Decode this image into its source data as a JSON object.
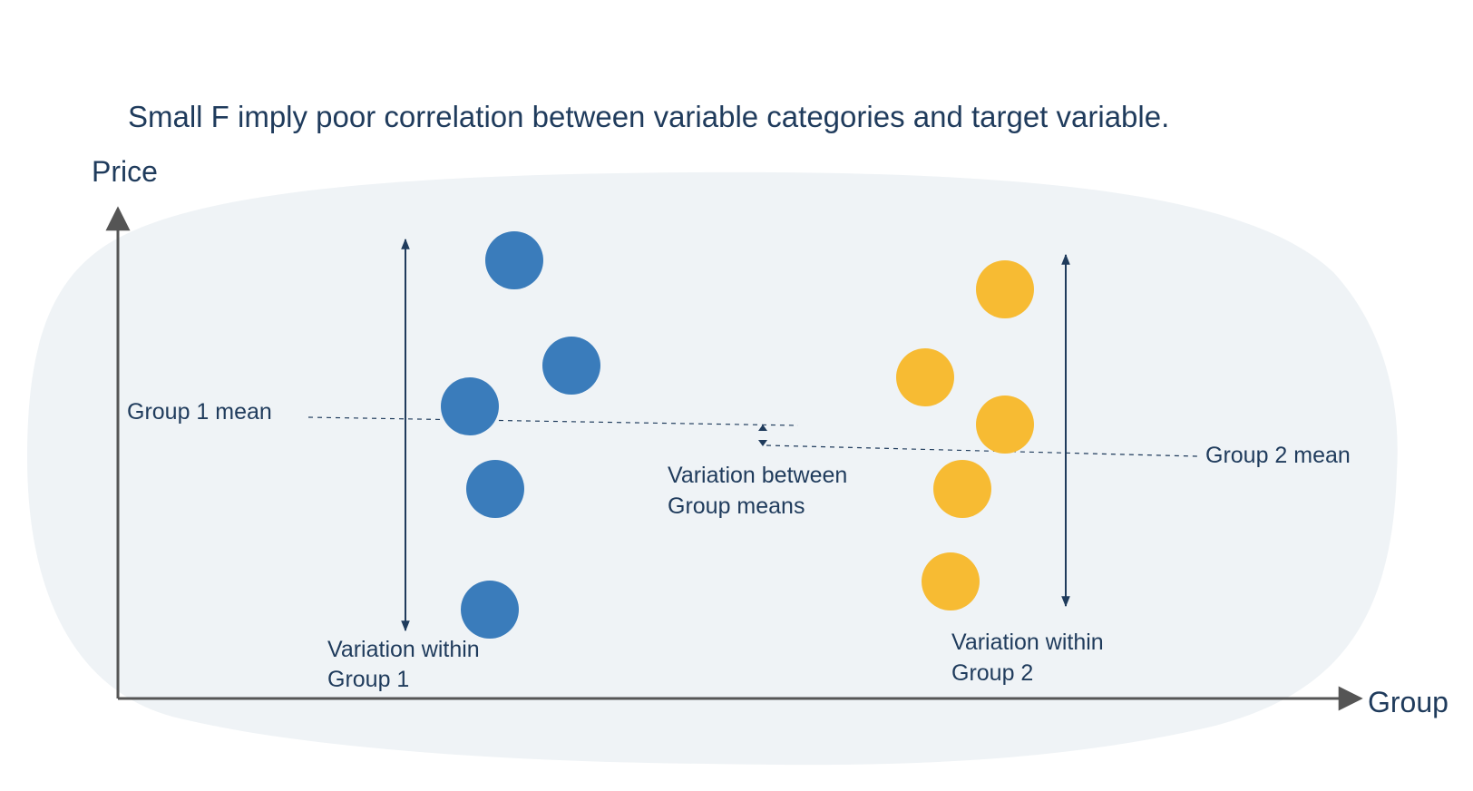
{
  "title": "Small F imply poor correlation between variable categories and target variable.",
  "axes": {
    "y_label": "Price",
    "x_label": "Group"
  },
  "labels": {
    "group1_mean": "Group 1 mean",
    "group2_mean": "Group 2 mean",
    "between_line1": "Variation between",
    "between_line2": "Group means",
    "within1_line1": "Variation within",
    "within1_line2": "Group 1",
    "within2_line1": "Variation within",
    "within2_line2": "Group 2"
  },
  "colors": {
    "text": "#1f3b5c",
    "axis": "#555555",
    "background_blob": "#eff3f6",
    "group1": "#3a7cbb",
    "group2": "#f7bb33",
    "arrow": "#1f3b5c"
  }
}
